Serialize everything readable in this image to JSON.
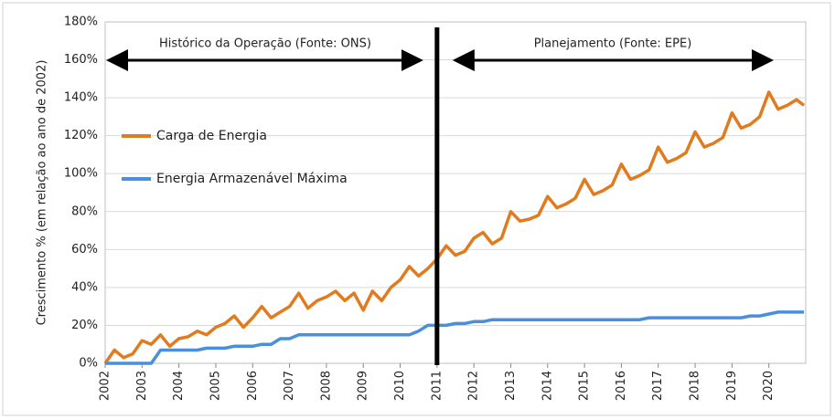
{
  "chart_data": {
    "type": "line",
    "y_label": "Crescimento % (em relação ao ano de 2002)",
    "annotations": [
      "Histórico da Operação (Fonte: ONS)",
      "Planejamento (Fonte: EPE)"
    ],
    "divider_x": 2011,
    "xlim": [
      2002,
      2021
    ],
    "xticks": [
      2002,
      2003,
      2004,
      2005,
      2006,
      2007,
      2008,
      2009,
      2010,
      2011,
      2012,
      2013,
      2014,
      2015,
      2016,
      2017,
      2018,
      2019,
      2020
    ],
    "ylim": [
      0,
      180
    ],
    "yticks": [
      {
        "value": 0,
        "label": "0%"
      },
      {
        "value": 20,
        "label": "20%"
      },
      {
        "value": 40,
        "label": "40%"
      },
      {
        "value": 60,
        "label": "60%"
      },
      {
        "value": 80,
        "label": "80%"
      },
      {
        "value": 100,
        "label": "100%"
      },
      {
        "value": 120,
        "label": "120%"
      },
      {
        "value": 140,
        "label": "140%"
      },
      {
        "value": 160,
        "label": "160%"
      },
      {
        "value": 180,
        "label": "180%"
      }
    ],
    "grid": true,
    "legend": "left",
    "x": [
      2002,
      2002.25,
      2002.5,
      2002.75,
      2003,
      2003.25,
      2003.5,
      2003.75,
      2004,
      2004.25,
      2004.5,
      2004.75,
      2005,
      2005.25,
      2005.5,
      2005.75,
      2006,
      2006.25,
      2006.5,
      2006.75,
      2007,
      2007.25,
      2007.5,
      2007.75,
      2008,
      2008.25,
      2008.5,
      2008.75,
      2009,
      2009.25,
      2009.5,
      2009.75,
      2010,
      2010.25,
      2010.5,
      2010.75,
      2011,
      2011.25,
      2011.5,
      2011.75,
      2012,
      2012.25,
      2012.5,
      2012.75,
      2013,
      2013.25,
      2013.5,
      2013.75,
      2014,
      2014.25,
      2014.5,
      2014.75,
      2015,
      2015.25,
      2015.5,
      2015.75,
      2016,
      2016.25,
      2016.5,
      2016.75,
      2017,
      2017.25,
      2017.5,
      2017.75,
      2018,
      2018.25,
      2018.5,
      2018.75,
      2019,
      2019.25,
      2019.5,
      2019.75,
      2020,
      2020.25,
      2020.5,
      2020.75,
      2020.95
    ],
    "series": [
      {
        "name": "Carga de Energia",
        "color": "#e07b20",
        "values": [
          0,
          7,
          3,
          5,
          12,
          10,
          15,
          9,
          13,
          14,
          17,
          15,
          19,
          21,
          25,
          19,
          24,
          30,
          24,
          27,
          30,
          37,
          29,
          33,
          35,
          38,
          33,
          37,
          28,
          38,
          33,
          40,
          44,
          51,
          46,
          50,
          55,
          62,
          57,
          59,
          66,
          69,
          63,
          66,
          80,
          75,
          76,
          78,
          88,
          82,
          84,
          87,
          97,
          89,
          91,
          94,
          105,
          97,
          99,
          102,
          114,
          106,
          108,
          111,
          122,
          114,
          116,
          119,
          132,
          124,
          126,
          130,
          143,
          134,
          136,
          139,
          136
        ]
      },
      {
        "name": "Energia Armazenável Máxima",
        "color": "#4a8fdc",
        "values": [
          0,
          0,
          0,
          0,
          0,
          0,
          7,
          7,
          7,
          7,
          7,
          8,
          8,
          8,
          9,
          9,
          9,
          10,
          10,
          13,
          13,
          15,
          15,
          15,
          15,
          15,
          15,
          15,
          15,
          15,
          15,
          15,
          15,
          15,
          17,
          20,
          20,
          20,
          21,
          21,
          22,
          22,
          23,
          23,
          23,
          23,
          23,
          23,
          23,
          23,
          23,
          23,
          23,
          23,
          23,
          23,
          23,
          23,
          23,
          24,
          24,
          24,
          24,
          24,
          24,
          24,
          24,
          24,
          24,
          24,
          25,
          25,
          26,
          27,
          27,
          27,
          27
        ]
      }
    ]
  }
}
